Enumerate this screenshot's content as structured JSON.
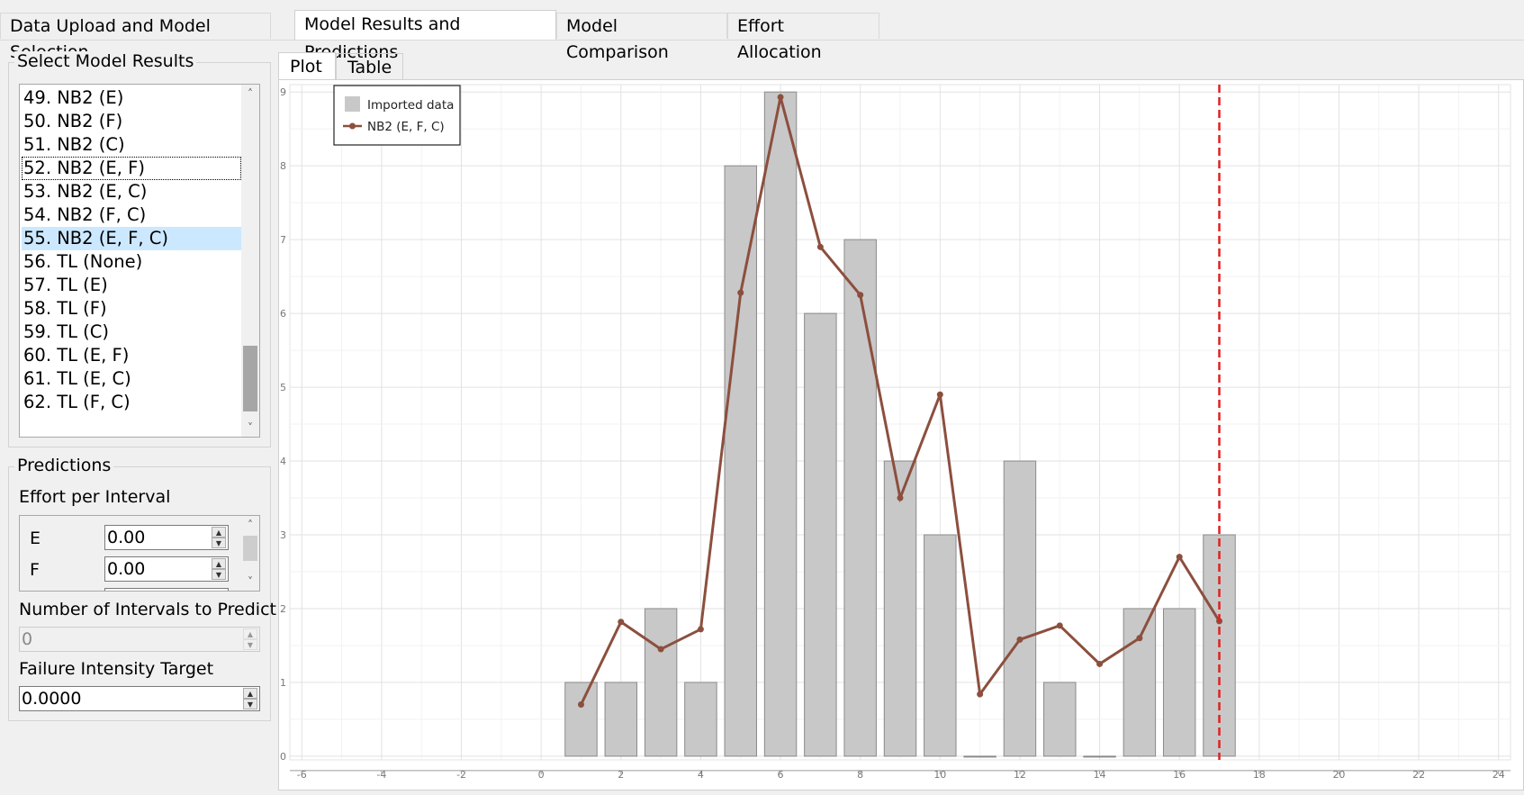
{
  "top_tabs": [
    {
      "label": "Data Upload and Model Selection",
      "active": false
    },
    {
      "label": "Model Results and Predictions",
      "active": true
    },
    {
      "label": "Model Comparison",
      "active": false
    },
    {
      "label": "Effort Allocation",
      "active": false
    }
  ],
  "model_results": {
    "title": "Select Model Results",
    "items": [
      "49. NB2 (E)",
      "50. NB2 (F)",
      "51. NB2 (C)",
      "52. NB2 (E, F)",
      "53. NB2 (E, C)",
      "54. NB2 (F, C)",
      "55. NB2 (E, F, C)",
      "56. TL (None)",
      "57. TL (E)",
      "58. TL (F)",
      "59. TL (C)",
      "60. TL (E, F)",
      "61. TL (E, C)",
      "62. TL (F, C)"
    ],
    "focused_item": "52. NB2 (E, F)",
    "selected_item": "55. NB2 (E, F, C)"
  },
  "predictions": {
    "title": "Predictions",
    "effort_label": "Effort per Interval",
    "effort_rows": [
      {
        "name": "E",
        "value": "0.00"
      },
      {
        "name": "F",
        "value": "0.00"
      }
    ],
    "intervals_label": "Number of Intervals to Predict",
    "intervals_value": "0",
    "fit_label": "Failure Intensity Target",
    "fit_value": "0.0000"
  },
  "plot_tabs": [
    {
      "label": "Plot",
      "active": true
    },
    {
      "label": "Table",
      "active": false
    }
  ],
  "chart_data": {
    "type": "bar",
    "xlim": [
      -6.3,
      24.3
    ],
    "ylim": [
      -0.05,
      9.1
    ],
    "x_ticks": [
      -6,
      -4,
      -2,
      0,
      2,
      4,
      6,
      8,
      10,
      12,
      14,
      16,
      18,
      20,
      22,
      24
    ],
    "y_ticks": [
      0,
      1,
      2,
      3,
      4,
      5,
      6,
      7,
      8,
      9
    ],
    "legend": {
      "position": "top-left"
    },
    "grid": true,
    "bars": {
      "name": "Imported data",
      "color": "#c8c8c8",
      "x": [
        1,
        2,
        3,
        4,
        5,
        6,
        7,
        8,
        9,
        10,
        11,
        12,
        13,
        14,
        15,
        16,
        17
      ],
      "values": [
        1,
        1,
        2,
        1,
        8,
        9,
        6,
        7,
        4,
        3,
        0,
        4,
        1,
        0,
        2,
        2,
        3
      ]
    },
    "series": [
      {
        "name": "NB2 (E, F, C)",
        "color": "#8c4f3e",
        "x": [
          1,
          2,
          3,
          4,
          5,
          6,
          7,
          8,
          9,
          10,
          11,
          12,
          13,
          14,
          15,
          16,
          17
        ],
        "values": [
          0.7,
          1.82,
          1.45,
          1.72,
          6.28,
          8.93,
          6.9,
          6.25,
          3.5,
          4.9,
          0.84,
          1.58,
          1.77,
          1.25,
          1.6,
          2.7,
          1.83
        ]
      }
    ],
    "vline": {
      "x": 17,
      "color": "#e02020",
      "style": "dashed"
    }
  }
}
